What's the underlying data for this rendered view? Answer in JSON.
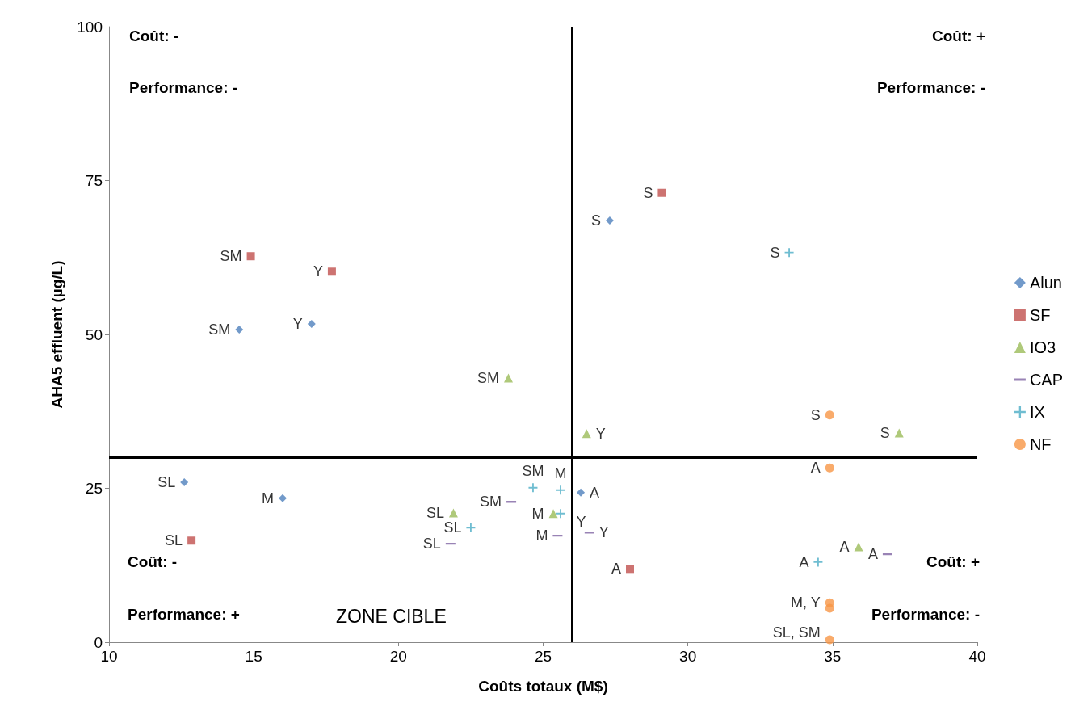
{
  "chart_data": {
    "type": "scatter",
    "xlabel": "Coûts totaux (M$)",
    "ylabel": "AHA5 effluent (µg/L)",
    "xlim": [
      10,
      40
    ],
    "xticks": [
      10,
      15,
      20,
      25,
      30,
      35,
      40
    ],
    "ylim": [
      0,
      100
    ],
    "yticks": [
      0,
      25,
      50,
      75,
      100
    ],
    "grid": false,
    "legend": "right",
    "series": [
      {
        "name": "Alun",
        "color": "#4f81bd",
        "marker": "diamond",
        "x": [
          12.6,
          16.0,
          14.5,
          17.0,
          27.3,
          26.3
        ],
        "values": [
          26.0,
          23.4,
          50.8,
          51.7,
          68.5,
          24.3
        ],
        "value_labels": [
          "SL",
          "M",
          "SM",
          "Y",
          "S",
          "A"
        ]
      },
      {
        "name": "SF",
        "color": "#c0504d",
        "marker": "square",
        "x": [
          12.85,
          14.9,
          17.7,
          29.1,
          28.0
        ],
        "values": [
          16.5,
          62.7,
          60.2,
          73.0,
          11.9
        ],
        "value_labels": [
          "SL",
          "SM",
          "Y",
          "S",
          "A"
        ]
      },
      {
        "name": "IO3",
        "color": "#9bbb59",
        "marker": "triangle",
        "x": [
          21.9,
          25.35,
          23.8,
          26.5,
          37.3,
          35.9
        ],
        "values": [
          21.0,
          20.9,
          42.9,
          33.9,
          34.0,
          15.5
        ],
        "value_labels": [
          "SL",
          "M",
          "SM",
          "Y",
          "S",
          "A"
        ]
      },
      {
        "name": "CAP",
        "color": "#8064a2",
        "x": [
          21.8,
          25.5,
          23.9,
          26.6,
          36.9
        ],
        "values": [
          16.0,
          17.3,
          22.8,
          17.8,
          14.3
        ],
        "value_labels": [
          "SL",
          "M",
          "SM",
          "Y",
          "A"
        ]
      },
      {
        "name": "IX",
        "color": "#4bacc6",
        "marker": "cross",
        "x": [
          22.5,
          25.6,
          24.65,
          25.6,
          33.5,
          34.5
        ],
        "values": [
          18.6,
          24.7,
          25.1,
          20.9,
          63.3,
          13.0
        ],
        "value_labels": [
          "SL",
          "M",
          "SM",
          "Y",
          "S",
          "A"
        ]
      },
      {
        "name": "NF",
        "color": "#f79646",
        "marker": "circle",
        "x": [
          34.9,
          34.9,
          34.9,
          34.9,
          34.9
        ],
        "values": [
          36.9,
          28.3,
          6.4,
          5.5,
          0.4
        ],
        "value_labels": [
          "S",
          "A",
          "M, Y",
          null,
          "SL, SM"
        ]
      }
    ],
    "ref_lines": [
      {
        "axis": "x",
        "value": 26,
        "color": "#000000"
      },
      {
        "axis": "y",
        "value": 30,
        "color": "#000000"
      }
    ],
    "annotations": [
      "Coût: -",
      "Performance: -",
      "Coût: +",
      "Performance: -",
      "Coût: -",
      "Performance: +",
      "Coût: +",
      "Performance: -",
      "ZONE CIBLE"
    ]
  }
}
